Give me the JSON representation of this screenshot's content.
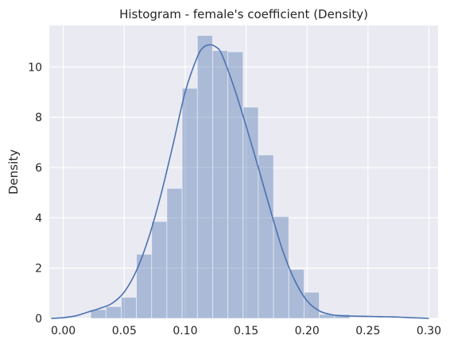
{
  "chart_data": {
    "type": "histogram",
    "title": "Histogram - female's coefficient (Density)",
    "xlabel": "",
    "ylabel": "Density",
    "xlim": [
      -0.0115,
      0.3075
    ],
    "ylim": [
      0,
      11.65
    ],
    "grid": true,
    "x_ticks": [
      0.0,
      0.05,
      0.1,
      0.15,
      0.2,
      0.25,
      0.3
    ],
    "x_tick_labels": [
      "0.00",
      "0.05",
      "0.10",
      "0.15",
      "0.20",
      "0.25",
      "0.30"
    ],
    "y_ticks": [
      0,
      2,
      4,
      6,
      8,
      10
    ],
    "y_tick_labels": [
      "0",
      "2",
      "4",
      "6",
      "8",
      "10"
    ],
    "bin_width": 0.0125,
    "bins": [
      {
        "x0": 0.0225,
        "x1": 0.035,
        "density": 0.35
      },
      {
        "x0": 0.035,
        "x1": 0.0475,
        "density": 0.47
      },
      {
        "x0": 0.0475,
        "x1": 0.06,
        "density": 0.84
      },
      {
        "x0": 0.06,
        "x1": 0.0725,
        "density": 2.55
      },
      {
        "x0": 0.0725,
        "x1": 0.085,
        "density": 3.85
      },
      {
        "x0": 0.085,
        "x1": 0.0975,
        "density": 5.17
      },
      {
        "x0": 0.0975,
        "x1": 0.11,
        "density": 9.15
      },
      {
        "x0": 0.11,
        "x1": 0.1225,
        "density": 11.25
      },
      {
        "x0": 0.1225,
        "x1": 0.135,
        "density": 10.65
      },
      {
        "x0": 0.135,
        "x1": 0.1475,
        "density": 10.6
      },
      {
        "x0": 0.1475,
        "x1": 0.16,
        "density": 8.4
      },
      {
        "x0": 0.16,
        "x1": 0.1725,
        "density": 6.5
      },
      {
        "x0": 0.1725,
        "x1": 0.185,
        "density": 4.05
      },
      {
        "x0": 0.185,
        "x1": 0.1975,
        "density": 1.95
      },
      {
        "x0": 0.1975,
        "x1": 0.21,
        "density": 1.04
      },
      {
        "x0": 0.21,
        "x1": 0.2225,
        "density": 0.16
      },
      {
        "x0": 0.2225,
        "x1": 0.235,
        "density": 0.16
      }
    ],
    "kde": {
      "x": [
        -0.01,
        0.0,
        0.01,
        0.02,
        0.03,
        0.04,
        0.05,
        0.06,
        0.07,
        0.08,
        0.09,
        0.1,
        0.11,
        0.115,
        0.12,
        0.125,
        0.13,
        0.14,
        0.15,
        0.16,
        0.17,
        0.18,
        0.19,
        0.2,
        0.21,
        0.22,
        0.23,
        0.24,
        0.25,
        0.26,
        0.27,
        0.28,
        0.29,
        0.3
      ],
      "y": [
        0.0,
        0.03,
        0.1,
        0.25,
        0.4,
        0.6,
        1.05,
        1.9,
        3.2,
        4.9,
        6.9,
        9.0,
        10.4,
        10.78,
        10.88,
        10.8,
        10.5,
        9.2,
        7.65,
        6.0,
        4.3,
        2.7,
        1.5,
        0.7,
        0.3,
        0.15,
        0.1,
        0.09,
        0.08,
        0.07,
        0.06,
        0.04,
        0.02,
        0.0
      ]
    },
    "colors": {
      "background": "#eaeaf2",
      "grid": "#ffffff",
      "bar_fill": "#4c72b0",
      "bar_opacity": 0.4,
      "kde_line": "#4c72b0"
    }
  }
}
